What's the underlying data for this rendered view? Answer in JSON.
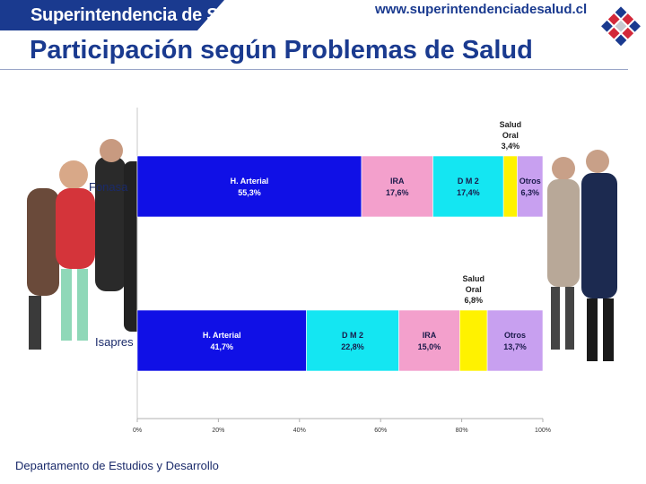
{
  "header": {
    "brand": "Superintendencia de Salud",
    "website": "www.superintendenciadesalud.cl",
    "title": "Participación según Problemas de Salud"
  },
  "footer": {
    "text": "Departamento de Estudios y Desarrollo"
  },
  "colors": {
    "H. Arterial": "#1010e6",
    "IRA": "#f3a0cc",
    "D M 2": "#14e6f2",
    "Salud Oral": "#fff200",
    "Otros": "#c8a0f0",
    "brand": "#1a3a8f"
  },
  "chart_data": {
    "type": "bar",
    "orientation": "horizontal",
    "stacked": true,
    "percent": true,
    "categories": [
      "Fonasa",
      "Isapres"
    ],
    "xlim": [
      0,
      100
    ],
    "xticks": [
      "0%",
      "20%",
      "40%",
      "60%",
      "80%",
      "100%"
    ],
    "bars": [
      {
        "category": "Fonasa",
        "segments": [
          {
            "name": "H. Arterial",
            "value": 55.3,
            "label": "55,3%"
          },
          {
            "name": "IRA",
            "value": 17.6,
            "label": "17,6%"
          },
          {
            "name": "D M 2",
            "value": 17.4,
            "label": "17,4%"
          },
          {
            "name": "Salud Oral",
            "value": 3.4,
            "label": "3,4%"
          },
          {
            "name": "Otros",
            "value": 6.3,
            "label": "6,3%"
          }
        ]
      },
      {
        "category": "Isapres",
        "segments": [
          {
            "name": "H. Arterial",
            "value": 41.7,
            "label": "41,7%"
          },
          {
            "name": "D M 2",
            "value": 22.8,
            "label": "22,8%"
          },
          {
            "name": "IRA",
            "value": 15.0,
            "label": "15,0%"
          },
          {
            "name": "Salud Oral",
            "value": 6.8,
            "label": "6,8%"
          },
          {
            "name": "Otros",
            "value": 13.7,
            "label": "13,7%"
          }
        ]
      }
    ]
  }
}
